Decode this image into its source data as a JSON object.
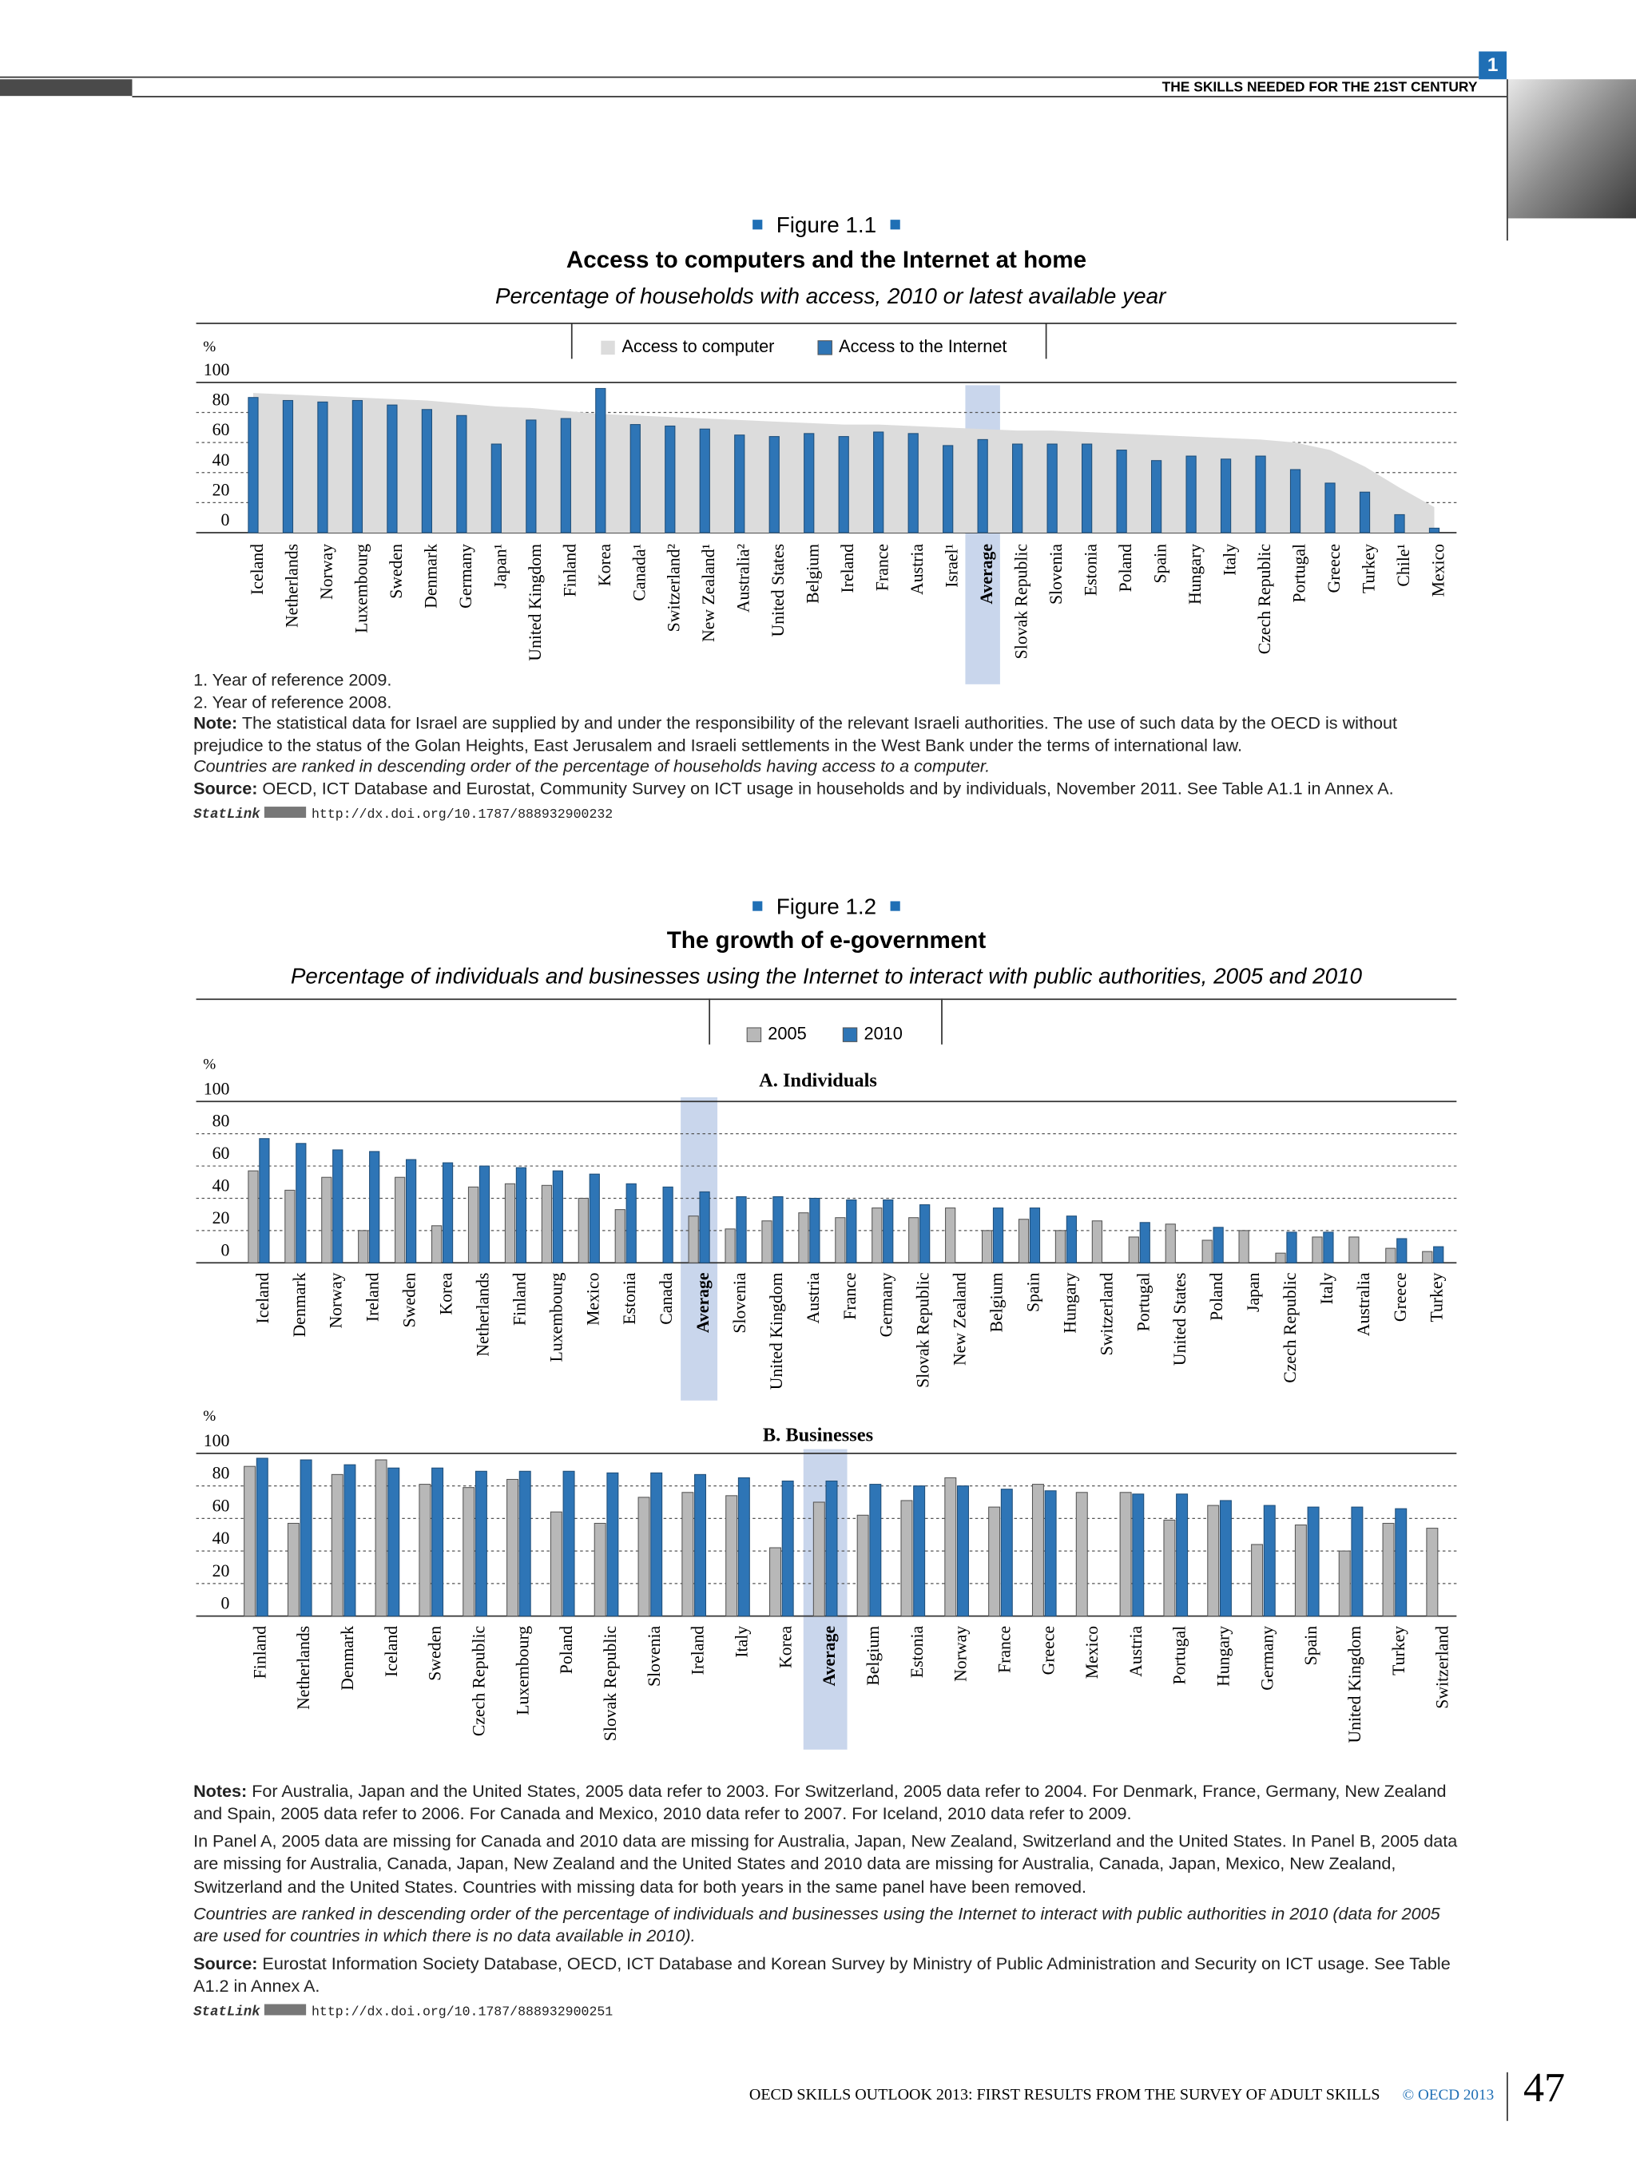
{
  "header": {
    "chapter": "1",
    "running_title": "THE SKILLS NEEDED FOR THE 21ST CENTURY"
  },
  "figures": [
    {
      "label": "Figure 1.1",
      "title": "Access to computers and the Internet at home",
      "subtitle": "Percentage of households with access, 2010 or latest available year",
      "footnotes": [
        "1. Year of reference 2009.",
        "2. Year of reference 2008."
      ],
      "note": {
        "label": "Note:",
        "text": "The statistical data for Israel are supplied by and under the responsibility of the relevant Israeli authorities. The use of such data by the OECD is without prejudice to the status of the Golan Heights, East Jerusalem and Israeli settlements in the West Bank under the terms of international law."
      },
      "ranking": "Countries are ranked in descending order of the percentage of households having access to a computer.",
      "source": {
        "label": "Source:",
        "text": "OECD, ICT Database and Eurostat, Community Survey on ICT usage in households and by individuals, November 2011. See Table A1.1 in Annex A."
      },
      "statlink": {
        "label": "StatLink",
        "url": "http://dx.doi.org/10.1787/888932900232"
      }
    },
    {
      "label": "Figure 1.2",
      "title": "The growth of e-government",
      "subtitle": "Percentage of individuals and businesses using the Internet to interact with public authorities, 2005 and 2010",
      "notes": {
        "label": "Notes:",
        "text": "For Australia, Japan and the United States, 2005 data refer to 2003. For Switzerland, 2005 data refer to 2004. For Denmark, France, Germany, New Zealand and Spain, 2005 data refer to 2006. For Canada and Mexico, 2010 data refer to 2007. For Iceland, 2010 data refer to 2009."
      },
      "notes_2": "In Panel A, 2005 data are missing for Canada and 2010 data are missing for Australia, Japan, New Zealand, Switzerland and the United States. In Panel B, 2005 data are missing for Australia, Canada, Japan, New Zealand and the United States and 2010 data are missing for Australia, Canada, Japan, Mexico, New Zealand, Switzerland and the United States. Countries with missing data for both years in the same panel have been removed.",
      "ranking": "Countries are ranked in descending order of the percentage of individuals and businesses using the Internet to interact with public authorities in 2010 (data for 2005 are used for countries in which there is no data available in 2010).",
      "source": {
        "label": "Source:",
        "text": "Eurostat Information Society Database, OECD, ICT Database and Korean Survey by Ministry of Public Administration and Security on ICT usage. See Table A1.2 in Annex A."
      },
      "statlink": {
        "label": "StatLink",
        "url": "http://dx.doi.org/10.1787/888932900251"
      }
    }
  ],
  "chart_data": [
    {
      "type": "bar",
      "y_unit": "%",
      "ylim": [
        0,
        100
      ],
      "yticks": [
        0,
        20,
        40,
        60,
        80,
        100
      ],
      "grid": true,
      "highlight_category": "Average",
      "categories": [
        "Iceland",
        "Netherlands",
        "Norway",
        "Luxembourg",
        "Sweden",
        "Denmark",
        "Germany",
        "Japan¹",
        "United Kingdom",
        "Finland",
        "Korea",
        "Canada¹",
        "Switzerland²",
        "New Zealand¹",
        "Australia²",
        "United States",
        "Belgium",
        "Ireland",
        "France",
        "Austria",
        "Israel¹",
        "Average",
        "Slovak Republic",
        "Slovenia",
        "Estonia",
        "Poland",
        "Spain",
        "Hungary",
        "Italy",
        "Czech Republic",
        "Portugal",
        "Greece",
        "Turkey",
        "Chile¹",
        "Mexico"
      ],
      "series": [
        {
          "name": "Access to computer",
          "type": "area",
          "color": "#dcdcdc",
          "values": [
            93,
            92,
            91,
            90,
            89,
            88,
            86,
            84,
            83,
            81,
            79,
            78,
            77,
            76,
            75,
            74,
            73,
            72,
            72,
            71,
            70,
            69,
            68,
            68,
            67,
            66,
            65,
            64,
            63,
            62,
            60,
            55,
            44,
            30,
            17
          ]
        },
        {
          "name": "Access to the Internet",
          "type": "bar",
          "color": "#2e75b6",
          "values": [
            90,
            88,
            87,
            88,
            85,
            82,
            78,
            59,
            75,
            76,
            96,
            72,
            71,
            69,
            65,
            64,
            66,
            64,
            67,
            66,
            58,
            62,
            59,
            59,
            59,
            55,
            48,
            51,
            49,
            51,
            42,
            33,
            27,
            12,
            3
          ]
        }
      ]
    },
    {
      "type": "bar",
      "title": "A. Individuals",
      "y_unit": "%",
      "ylim": [
        0,
        100
      ],
      "yticks": [
        0,
        20,
        40,
        60,
        80,
        100
      ],
      "grid": true,
      "highlight_category": "Average",
      "categories": [
        "Iceland",
        "Denmark",
        "Norway",
        "Ireland",
        "Sweden",
        "Korea",
        "Netherlands",
        "Finland",
        "Luxembourg",
        "Mexico",
        "Estonia",
        "Canada",
        "Average",
        "Slovenia",
        "United Kingdom",
        "Austria",
        "France",
        "Germany",
        "Slovak Republic",
        "New Zealand",
        "Belgium",
        "Spain",
        "Hungary",
        "Switzerland",
        "Portugal",
        "United States",
        "Poland",
        "Japan",
        "Czech Republic",
        "Italy",
        "Australia",
        "Greece",
        "Turkey"
      ],
      "series": [
        {
          "name": "2005",
          "type": "bar",
          "color": "#b8b8b8",
          "values": [
            57,
            45,
            53,
            20,
            53,
            23,
            47,
            49,
            48,
            40,
            33,
            null,
            29,
            21,
            26,
            31,
            28,
            34,
            28,
            34,
            20,
            27,
            20,
            26,
            16,
            24,
            14,
            20,
            6,
            16,
            16,
            9,
            7
          ]
        },
        {
          "name": "2010",
          "type": "bar",
          "color": "#2e75b6",
          "values": [
            77,
            74,
            70,
            69,
            64,
            62,
            60,
            59,
            57,
            55,
            49,
            47,
            44,
            41,
            41,
            40,
            39,
            39,
            36,
            null,
            34,
            34,
            29,
            null,
            25,
            null,
            22,
            null,
            19,
            19,
            null,
            15,
            10
          ]
        }
      ]
    },
    {
      "type": "bar",
      "title": "B. Businesses",
      "y_unit": "%",
      "ylim": [
        0,
        100
      ],
      "yticks": [
        0,
        20,
        40,
        60,
        80,
        100
      ],
      "grid": true,
      "highlight_category": "Average",
      "categories": [
        "Finland",
        "Netherlands",
        "Denmark",
        "Iceland",
        "Sweden",
        "Czech Republic",
        "Luxembourg",
        "Poland",
        "Slovak Republic",
        "Slovenia",
        "Ireland",
        "Italy",
        "Korea",
        "Average",
        "Belgium",
        "Estonia",
        "Norway",
        "France",
        "Greece",
        "Mexico",
        "Austria",
        "Portugal",
        "Hungary",
        "Germany",
        "Spain",
        "United Kingdom",
        "Turkey",
        "Switzerland"
      ],
      "series": [
        {
          "type": "bar",
          "color": "#b8b8b8",
          "values": [
            92,
            57,
            87,
            96,
            81,
            79,
            84,
            64,
            57,
            73,
            76,
            74,
            42,
            70,
            62,
            71,
            85,
            67,
            81,
            76,
            76,
            59,
            68,
            44,
            56,
            40,
            57,
            54
          ]
        },
        {
          "type": "bar",
          "color": "#2e75b6",
          "values": [
            97,
            96,
            93,
            91,
            91,
            89,
            89,
            89,
            88,
            88,
            87,
            85,
            83,
            83,
            81,
            80,
            80,
            78,
            77,
            null,
            75,
            75,
            71,
            68,
            67,
            67,
            66,
            null
          ]
        }
      ]
    }
  ],
  "footer": {
    "book": "OECD SKILLS OUTLOOK 2013: FIRST RESULTS FROM THE SURVEY OF ADULT SKILLS",
    "copyright": "© OECD 2013",
    "page": "47"
  }
}
